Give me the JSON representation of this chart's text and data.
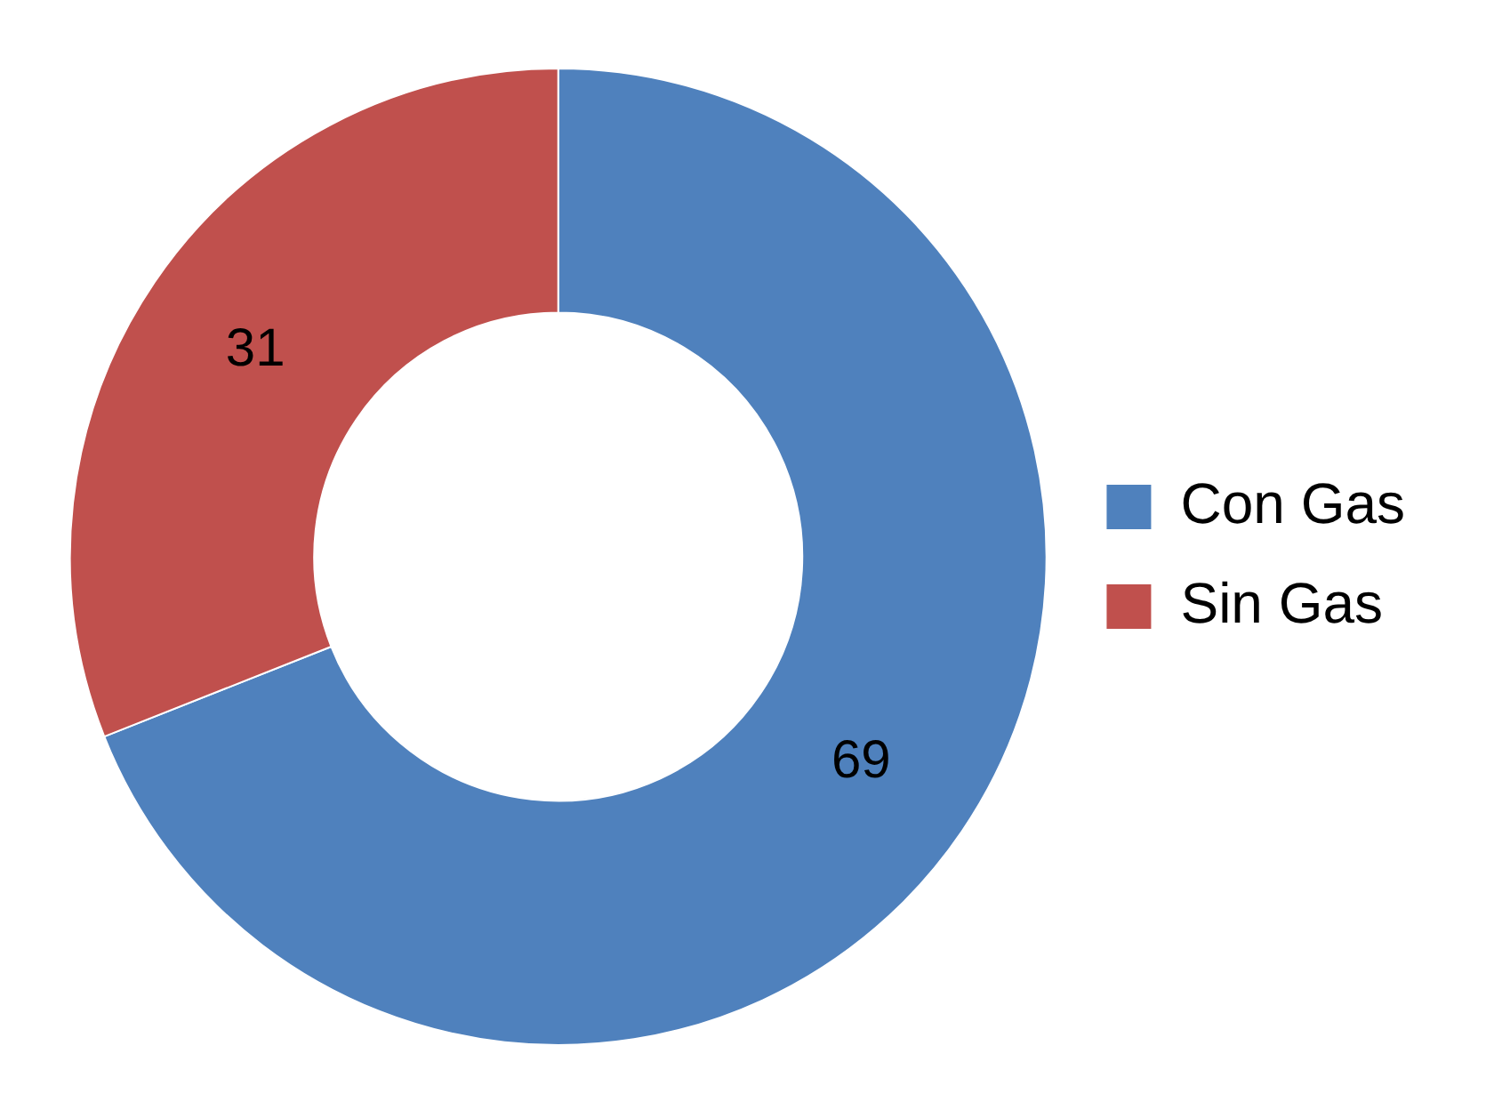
{
  "chart_data": {
    "type": "donut",
    "categories": [
      "Con Gas",
      "Sin Gas"
    ],
    "values": [
      69,
      31
    ],
    "colors": [
      "#4f81bd",
      "#c0504d"
    ],
    "data_labels": true,
    "legend": "right"
  }
}
